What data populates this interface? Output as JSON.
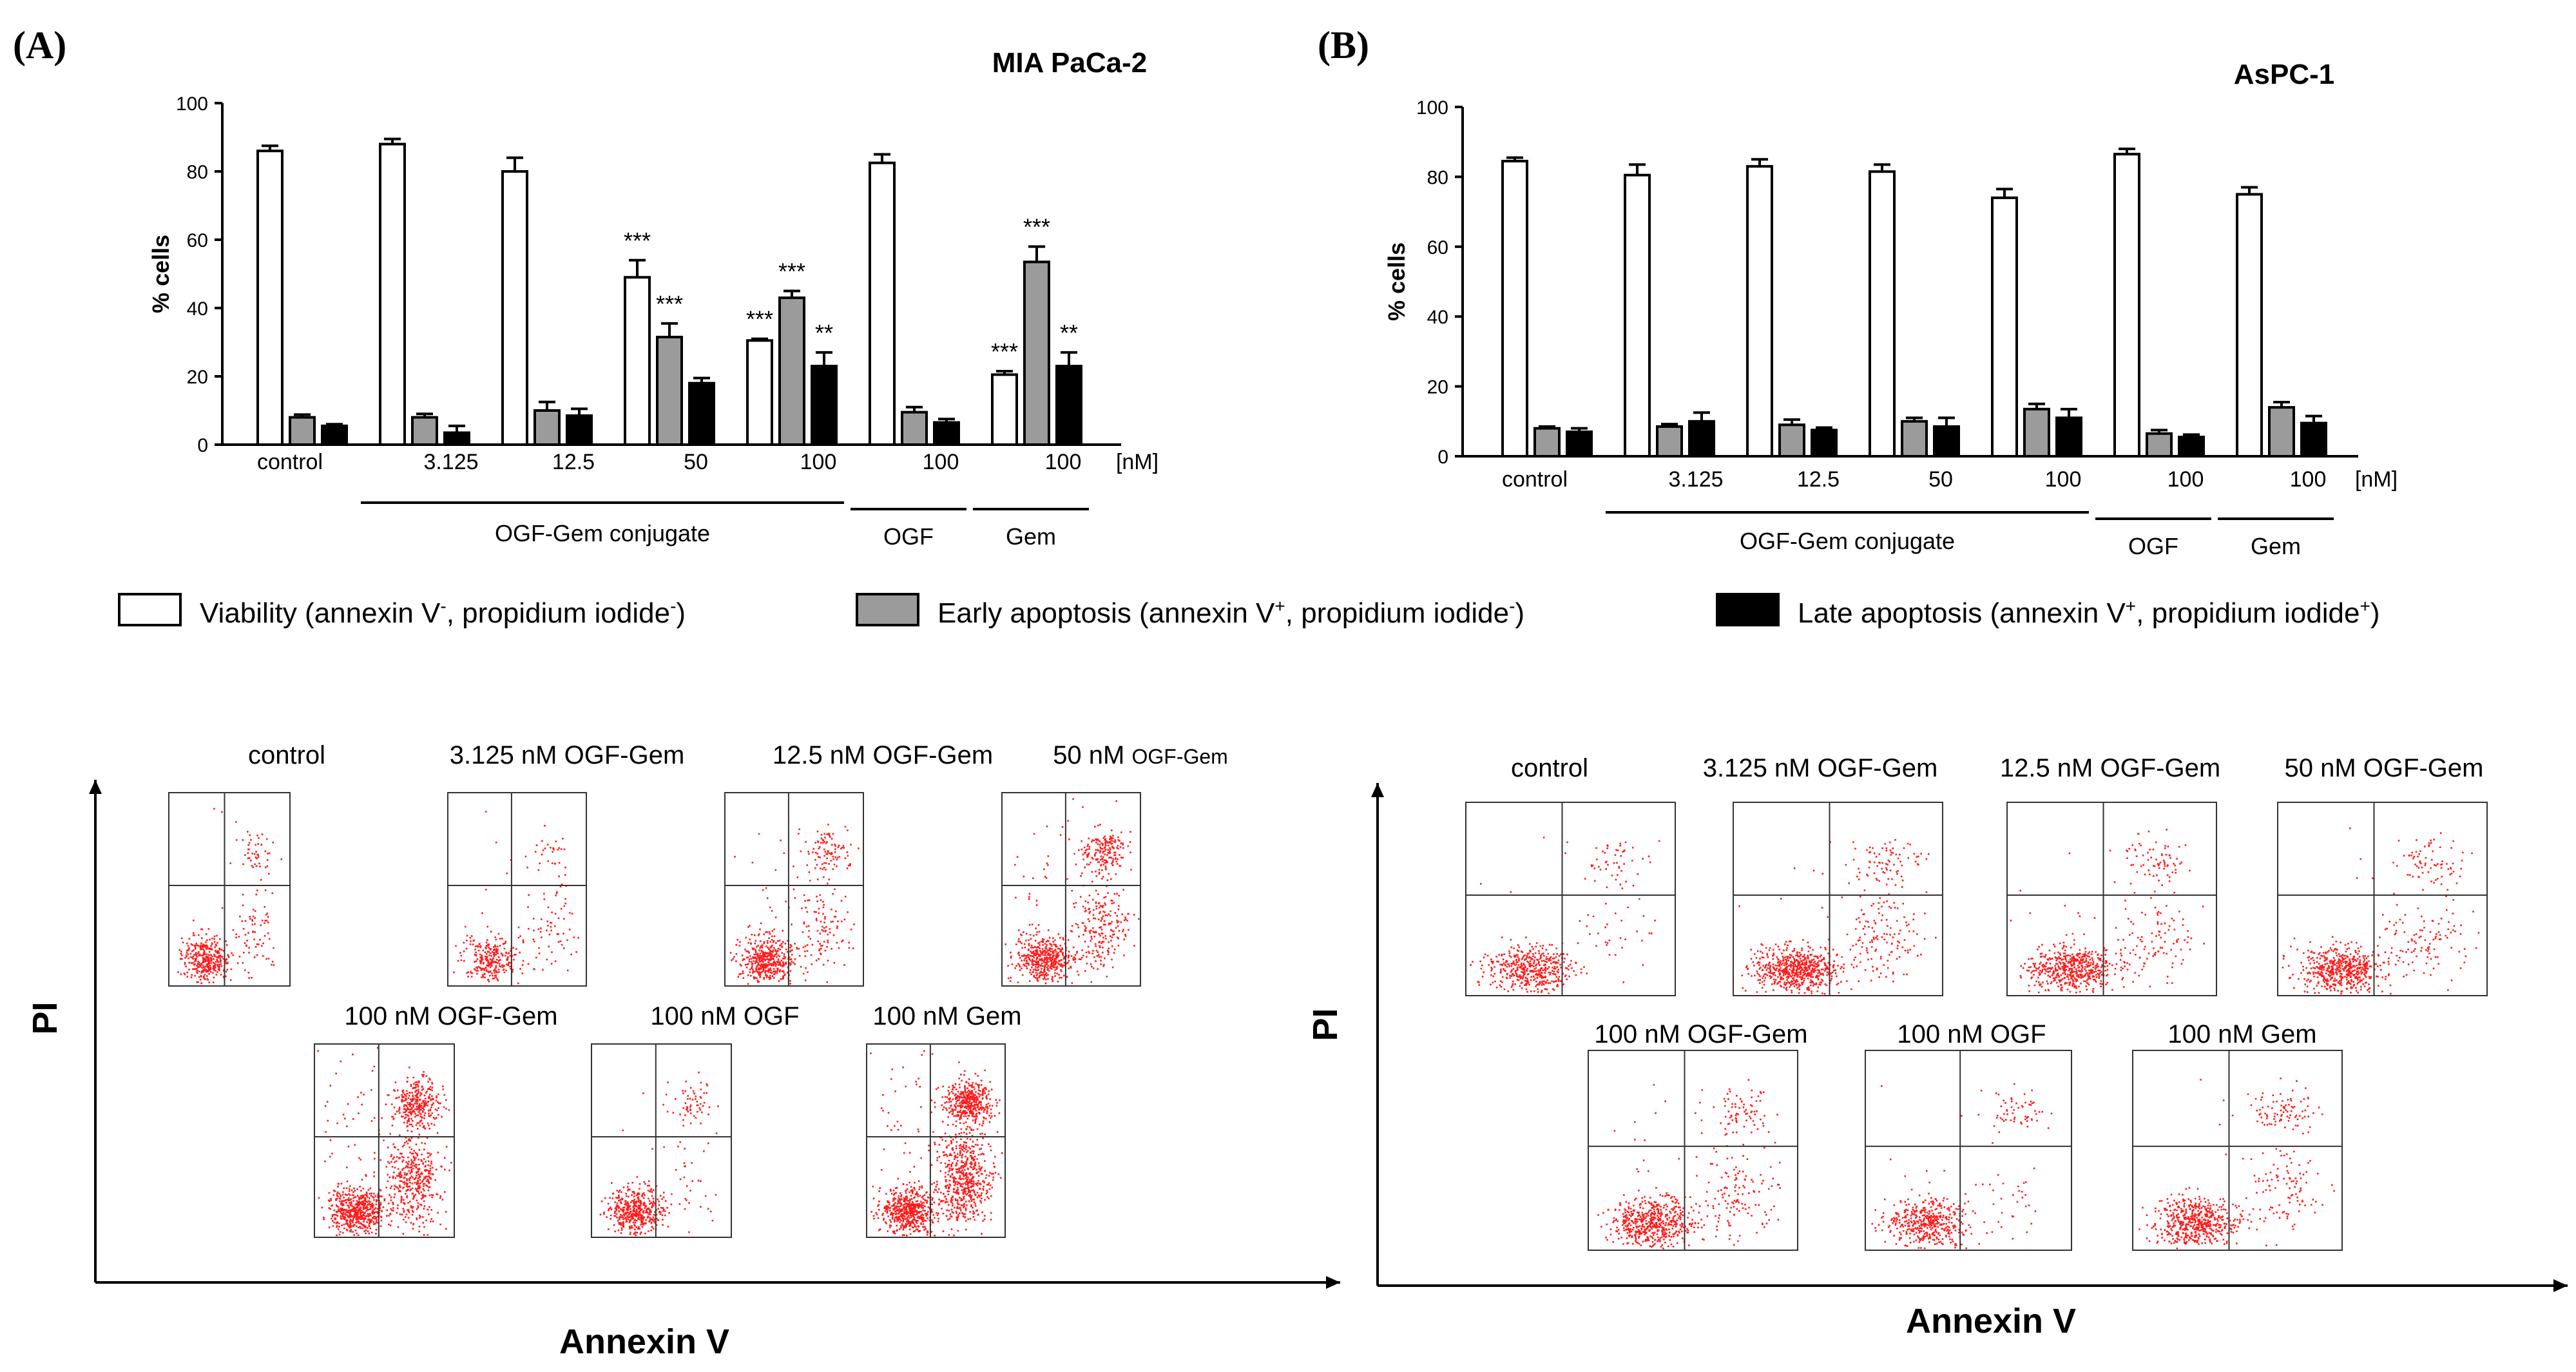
{
  "chart_data": [
    {
      "type": "bar",
      "panel_label": "(A)",
      "title": "MIA PaCa-2",
      "ylabel": "% cells",
      "xlabel": "",
      "ylim": [
        0,
        100
      ],
      "y_ticks": [
        0,
        20,
        40,
        60,
        80,
        100
      ],
      "categories": [
        "control",
        "3.125",
        "12.5",
        "50",
        "100",
        "100",
        "100"
      ],
      "unit_label": "[nM]",
      "series": [
        {
          "name": "Viability",
          "values": [
            86,
            88,
            80,
            49,
            30.5,
            82.5,
            20.5
          ],
          "errors": [
            1.5,
            1.5,
            4,
            5,
            0.5,
            2.5,
            1
          ]
        },
        {
          "name": "Early apoptosis",
          "values": [
            8,
            8,
            10,
            31.5,
            43,
            9.5,
            53.5
          ],
          "errors": [
            0.8,
            1,
            2.5,
            4,
            2,
            1.5,
            4.5
          ]
        },
        {
          "name": "Late apoptosis",
          "values": [
            5.5,
            3.5,
            8.5,
            18,
            23,
            6.5,
            23
          ],
          "errors": [
            0.5,
            2,
            2,
            1.5,
            4,
            1,
            4
          ]
        }
      ],
      "significance": [
        {
          "category": 3,
          "series": 0,
          "text": "***"
        },
        {
          "category": 3,
          "series": 1,
          "text": "***"
        },
        {
          "category": 4,
          "series": 0,
          "text": "***"
        },
        {
          "category": 4,
          "series": 1,
          "text": "***"
        },
        {
          "category": 4,
          "series": 2,
          "text": "**"
        },
        {
          "category": 6,
          "series": 0,
          "text": "***"
        },
        {
          "category": 6,
          "series": 1,
          "text": "***"
        },
        {
          "category": 6,
          "series": 2,
          "text": "**"
        }
      ],
      "groups": [
        {
          "label": "OGF-Gem conjugate",
          "from": 1,
          "to": 4
        },
        {
          "label": "OGF",
          "from": 5,
          "to": 5
        },
        {
          "label": "Gem",
          "from": 6,
          "to": 6
        }
      ]
    },
    {
      "type": "bar",
      "panel_label": "(B)",
      "title": "AsPC-1",
      "ylabel": "% cells",
      "xlabel": "",
      "ylim": [
        0,
        100
      ],
      "y_ticks": [
        0,
        20,
        40,
        60,
        80,
        100
      ],
      "categories": [
        "control",
        "3.125",
        "12.5",
        "50",
        "100",
        "100",
        "100"
      ],
      "unit_label": "[nM]",
      "series": [
        {
          "name": "Viability",
          "values": [
            84.5,
            80.5,
            83,
            81.5,
            74,
            86.5,
            75
          ],
          "errors": [
            1,
            3,
            2,
            2,
            2.5,
            1.5,
            2
          ]
        },
        {
          "name": "Early apoptosis",
          "values": [
            8,
            8.5,
            9,
            10,
            13.5,
            6.5,
            14
          ],
          "errors": [
            0.5,
            0.7,
            1.5,
            1,
            1.5,
            1,
            1.5
          ]
        },
        {
          "name": "Late apoptosis",
          "values": [
            7,
            10,
            7.5,
            8.5,
            11,
            5.5,
            9.5
          ],
          "errors": [
            1,
            2.5,
            0.7,
            2.5,
            2.5,
            0.7,
            2
          ]
        }
      ],
      "significance": [],
      "groups": [
        {
          "label": "OGF-Gem conjugate",
          "from": 1,
          "to": 4
        },
        {
          "label": "OGF",
          "from": 5,
          "to": 5
        },
        {
          "label": "Gem",
          "from": 6,
          "to": 6
        }
      ]
    }
  ],
  "legend": [
    {
      "prefix": "Viability (annexin V",
      "sup1": "-",
      "middle": ", propidium iodide",
      "sup2": "-",
      "suffix": ")",
      "fill": "#ffffff"
    },
    {
      "prefix": "Early apoptosis (annexin V",
      "sup1": "+",
      "middle": ", propidium iodide",
      "sup2": "-",
      "suffix": ")",
      "fill": "#9b9b9b"
    },
    {
      "prefix": "Late apoptosis (annexin V",
      "sup1": "+",
      "middle": ", propidium iodide",
      "sup2": "+",
      "suffix": ")",
      "fill": "#000000"
    }
  ],
  "flow": [
    {
      "x_axis_label": "Annexin V",
      "y_axis_label": "PI",
      "plots": [
        {
          "label": "control",
          "tail": "",
          "density": [
            0.4,
            0.1,
            0.08,
            0.02
          ]
        },
        {
          "label": "3.125 nM OGF-Gem",
          "tail": "",
          "density": [
            0.3,
            0.1,
            0.05,
            0.02
          ]
        },
        {
          "label": "12.5 nM OGF-Gem",
          "tail": "",
          "density": [
            0.5,
            0.15,
            0.15,
            0.1
          ]
        },
        {
          "label": "50 nM ",
          "tail": "OGF-Gem",
          "density": [
            0.5,
            0.3,
            0.3,
            0.15
          ]
        },
        {
          "label": "100 nM OGF-Gem",
          "tail": "",
          "density": [
            0.6,
            0.6,
            0.5,
            0.2
          ]
        },
        {
          "label": "100 nM OGF",
          "tail": "",
          "density": [
            0.5,
            0.05,
            0.1,
            0.02
          ]
        },
        {
          "label": "100 nM Gem",
          "tail": "",
          "density": [
            0.6,
            0.8,
            0.7,
            0.2
          ]
        }
      ]
    },
    {
      "x_axis_label": "Annexin V",
      "y_axis_label": "PI",
      "plots": [
        {
          "label": "control",
          "tail": "",
          "density": [
            0.5,
            0.05,
            0.08,
            0.02
          ]
        },
        {
          "label": "3.125 nM OGF-Gem",
          "tail": "",
          "density": [
            0.7,
            0.2,
            0.12,
            0.05
          ]
        },
        {
          "label": "12.5 nM OGF-Gem",
          "tail": "",
          "density": [
            0.6,
            0.15,
            0.12,
            0.04
          ]
        },
        {
          "label": "50 nM OGF-Gem",
          "tail": "",
          "density": [
            0.6,
            0.15,
            0.12,
            0.04
          ]
        },
        {
          "label": "100 nM OGF-Gem",
          "tail": "",
          "density": [
            0.6,
            0.2,
            0.12,
            0.05
          ]
        },
        {
          "label": "100 nM OGF",
          "tail": "",
          "density": [
            0.5,
            0.05,
            0.1,
            0.02
          ]
        },
        {
          "label": "100 nM Gem",
          "tail": "",
          "density": [
            0.6,
            0.15,
            0.15,
            0.04
          ]
        }
      ]
    }
  ],
  "colors": {
    "dots": "#ff1a1a",
    "axis": "#000000",
    "early_fill": "#9b9b9b",
    "late_fill": "#000000"
  }
}
